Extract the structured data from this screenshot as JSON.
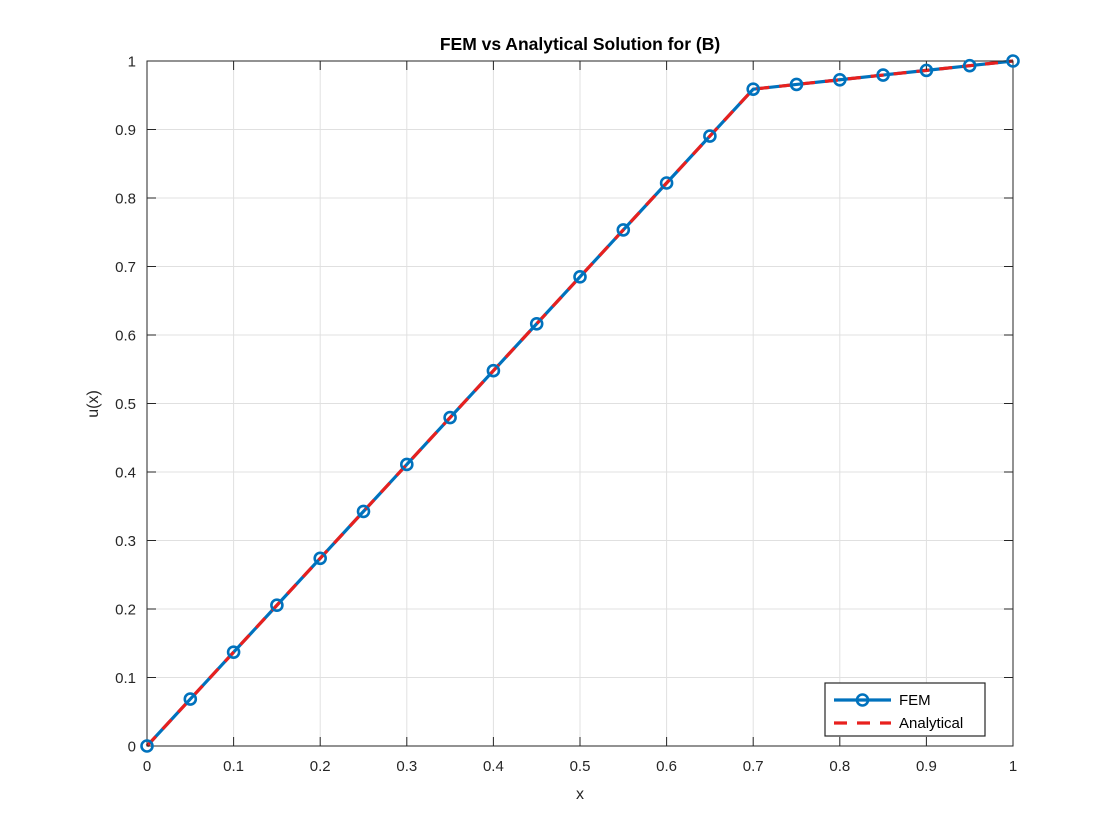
{
  "figure": {
    "background": "#ffffff"
  },
  "chart_data": {
    "type": "line",
    "title": "FEM vs Analytical Solution for (B)",
    "xlabel": "x",
    "ylabel": "u(x)",
    "xlim": [
      0,
      1
    ],
    "ylim": [
      0,
      1
    ],
    "grid": true,
    "box": true,
    "legend_position": "bottom-right",
    "xticks": [
      0,
      0.1,
      0.2,
      0.3,
      0.4,
      0.5,
      0.6,
      0.7,
      0.8,
      0.9,
      1
    ],
    "xtick_labels": [
      "0",
      "0.1",
      "0.2",
      "0.3",
      "0.4",
      "0.5",
      "0.6",
      "0.7",
      "0.8",
      "0.9",
      "1"
    ],
    "yticks": [
      0,
      0.1,
      0.2,
      0.3,
      0.4,
      0.5,
      0.6,
      0.7,
      0.8,
      0.9,
      1
    ],
    "ytick_labels": [
      "0",
      "0.1",
      "0.2",
      "0.3",
      "0.4",
      "0.5",
      "0.6",
      "0.7",
      "0.8",
      "0.9",
      "1"
    ],
    "x": [
      0,
      0.05,
      0.1,
      0.15,
      0.2,
      0.25,
      0.3,
      0.35,
      0.4,
      0.45,
      0.5,
      0.55,
      0.6,
      0.65,
      0.7,
      0.75,
      0.8,
      0.85,
      0.9,
      0.95,
      1
    ],
    "series": [
      {
        "name": "FEM",
        "color": "#0072bd",
        "style": "solid",
        "marker": "circle",
        "values": [
          0,
          0.0685,
          0.137,
          0.2055,
          0.274,
          0.3425,
          0.411,
          0.4795,
          0.5479,
          0.6164,
          0.6849,
          0.7534,
          0.8219,
          0.8904,
          0.9589,
          0.9658,
          0.9726,
          0.9795,
          0.9863,
          0.9932,
          1
        ]
      },
      {
        "name": "Analytical",
        "color": "#e8201e",
        "style": "dashed",
        "marker": "none",
        "values": [
          0,
          0.0685,
          0.137,
          0.2055,
          0.274,
          0.3425,
          0.411,
          0.4795,
          0.5479,
          0.6164,
          0.6849,
          0.7534,
          0.8219,
          0.8904,
          0.9589,
          0.9658,
          0.9726,
          0.9795,
          0.9863,
          0.9932,
          1
        ]
      }
    ],
    "colors": {
      "grid": "#e0e0e0",
      "axis": "#262626",
      "tick_label": "#262626",
      "legend_border": "#262626",
      "legend_background": "#ffffff"
    }
  }
}
